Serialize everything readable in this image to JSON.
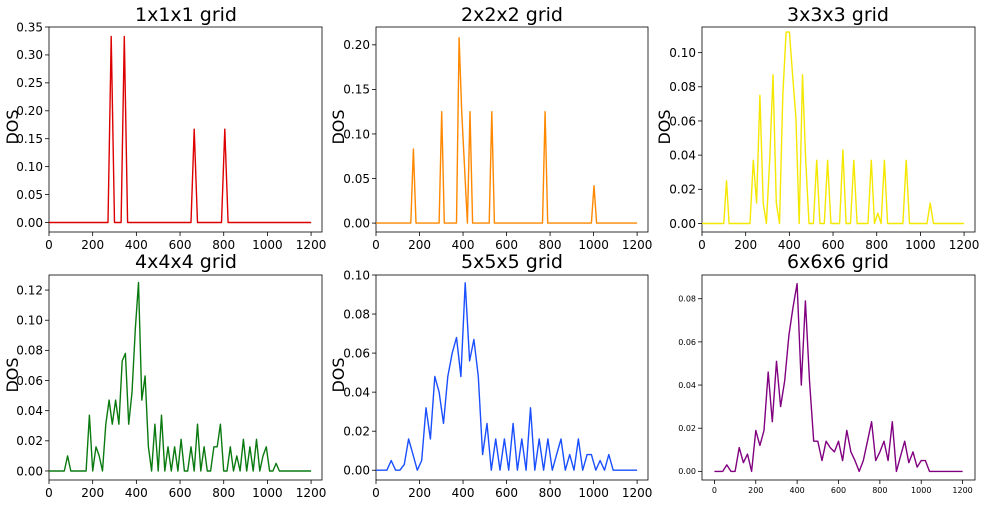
{
  "figure": {
    "colors": {
      "red": "#dd0000",
      "orange": "#ff8800",
      "yellow": "#f5e800",
      "green": "#0a7a10",
      "blue": "#1a4fff",
      "purple": "#800080"
    }
  },
  "chart_data": [
    {
      "type": "line",
      "title": "1x1x1 grid",
      "xlabel": "",
      "ylabel": "DOS",
      "xlim": [
        0,
        1250
      ],
      "ylim": [
        -0.017,
        0.35
      ],
      "xticks": [
        0,
        200,
        400,
        600,
        800,
        1000,
        1200
      ],
      "yticks": [
        0.0,
        0.05,
        0.1,
        0.15,
        0.2,
        0.25,
        0.3,
        0.35
      ],
      "ytick_labels": [
        "0.00",
        "0.05",
        "0.10",
        "0.15",
        "0.20",
        "0.25",
        "0.30",
        "0.35"
      ],
      "grid": false,
      "color": "#dd0000",
      "x": [
        0,
        270,
        285,
        300,
        330,
        345,
        360,
        650,
        665,
        680,
        790,
        805,
        820,
        1200
      ],
      "y": [
        0,
        0,
        0.333,
        0,
        0,
        0.333,
        0,
        0,
        0.167,
        0,
        0,
        0.167,
        0,
        0
      ]
    },
    {
      "type": "line",
      "title": "2x2x2 grid",
      "xlabel": "",
      "ylabel": "DOS",
      "xlim": [
        0,
        1250
      ],
      "ylim": [
        -0.01,
        0.22
      ],
      "xticks": [
        0,
        200,
        400,
        600,
        800,
        1000,
        1200
      ],
      "yticks": [
        0.0,
        0.05,
        0.1,
        0.15,
        0.2
      ],
      "ytick_labels": [
        "0.00",
        "0.05",
        "0.10",
        "0.15",
        "0.20"
      ],
      "grid": false,
      "color": "#ff8800",
      "x": [
        0,
        160,
        172,
        184,
        290,
        302,
        314,
        370,
        382,
        394,
        420,
        432,
        444,
        456,
        520,
        532,
        544,
        765,
        777,
        789,
        990,
        1002,
        1014,
        1200
      ],
      "y": [
        0,
        0,
        0.083,
        0,
        0,
        0.125,
        0,
        0,
        0.208,
        0.125,
        0,
        0.125,
        0,
        0,
        0,
        0.125,
        0,
        0,
        0.125,
        0,
        0,
        0.042,
        0,
        0
      ]
    },
    {
      "type": "line",
      "title": "3x3x3 grid",
      "xlabel": "",
      "ylabel": "DOS",
      "xlim": [
        0,
        1250
      ],
      "ylim": [
        -0.005,
        0.115
      ],
      "xticks": [
        0,
        200,
        400,
        600,
        800,
        1000,
        1200
      ],
      "yticks": [
        0.0,
        0.02,
        0.04,
        0.06,
        0.08,
        0.1
      ],
      "ytick_labels": [
        "0.00",
        "0.02",
        "0.04",
        "0.06",
        "0.08",
        "0.10"
      ],
      "grid": false,
      "color": "#f5e800",
      "x": [
        0,
        100,
        112,
        124,
        220,
        235,
        250,
        265,
        280,
        295,
        310,
        325,
        340,
        355,
        370,
        385,
        400,
        415,
        430,
        445,
        460,
        475,
        490,
        510,
        525,
        540,
        560,
        575,
        590,
        630,
        645,
        660,
        680,
        695,
        710,
        760,
        775,
        790,
        805,
        820,
        835,
        850,
        920,
        935,
        950,
        1030,
        1045,
        1060,
        1200
      ],
      "y": [
        0,
        0,
        0.025,
        0,
        0,
        0.037,
        0.012,
        0.075,
        0.012,
        0,
        0.037,
        0.087,
        0.012,
        0,
        0.075,
        0.112,
        0.112,
        0.087,
        0.062,
        0,
        0.087,
        0.037,
        0,
        0,
        0.037,
        0,
        0,
        0.037,
        0,
        0,
        0.043,
        0,
        0,
        0.037,
        0,
        0,
        0.037,
        0,
        0.006,
        0,
        0.037,
        0,
        0,
        0.037,
        0,
        0,
        0.012,
        0,
        0
      ]
    },
    {
      "type": "line",
      "title": "4x4x4 grid",
      "xlabel": "",
      "ylabel": "DOS",
      "xlim": [
        0,
        1250
      ],
      "ylim": [
        -0.006,
        0.13
      ],
      "xticks": [
        0,
        200,
        400,
        600,
        800,
        1000,
        1200
      ],
      "yticks": [
        0.0,
        0.02,
        0.04,
        0.06,
        0.08,
        0.1,
        0.12
      ],
      "ytick_labels": [
        "0.00",
        "0.02",
        "0.04",
        "0.06",
        "0.08",
        "0.10",
        "0.12"
      ],
      "grid": false,
      "color": "#0a7a10",
      "x": [
        0,
        70,
        85,
        100,
        170,
        185,
        200,
        215,
        230,
        245,
        260,
        275,
        290,
        305,
        320,
        335,
        350,
        365,
        380,
        395,
        410,
        425,
        440,
        455,
        470,
        485,
        500,
        515,
        530,
        545,
        560,
        575,
        590,
        605,
        620,
        635,
        650,
        665,
        680,
        695,
        710,
        725,
        740,
        755,
        770,
        785,
        800,
        815,
        830,
        845,
        860,
        875,
        890,
        905,
        920,
        935,
        950,
        965,
        980,
        995,
        1010,
        1025,
        1040,
        1055,
        1070,
        1085,
        1200
      ],
      "y": [
        0,
        0,
        0.01,
        0,
        0,
        0.037,
        0,
        0.016,
        0.01,
        0,
        0.031,
        0.047,
        0.031,
        0.047,
        0.031,
        0.073,
        0.078,
        0.031,
        0.052,
        0.094,
        0.125,
        0.047,
        0.063,
        0.016,
        0,
        0.031,
        0,
        0.037,
        0,
        0.016,
        0,
        0.016,
        0,
        0.021,
        0,
        0,
        0.016,
        0,
        0.031,
        0,
        0.016,
        0,
        0,
        0.016,
        0.016,
        0.031,
        0,
        0,
        0.016,
        0,
        0.01,
        0,
        0.021,
        0,
        0.016,
        0,
        0.021,
        0,
        0.01,
        0.016,
        0,
        0,
        0.005,
        0,
        0,
        0,
        0
      ]
    },
    {
      "type": "line",
      "title": "5x5x5 grid",
      "xlabel": "",
      "ylabel": "DOS",
      "xlim": [
        0,
        1250
      ],
      "ylim": [
        -0.005,
        0.1
      ],
      "xticks": [
        0,
        200,
        400,
        600,
        800,
        1000,
        1200
      ],
      "yticks": [
        0.0,
        0.02,
        0.04,
        0.06,
        0.08,
        0.1
      ],
      "ytick_labels": [
        "0.00",
        "0.02",
        "0.04",
        "0.06",
        "0.08",
        "0.10"
      ],
      "grid": false,
      "color": "#1a4fff",
      "x": [
        0,
        50,
        70,
        90,
        110,
        130,
        150,
        170,
        190,
        210,
        230,
        250,
        270,
        290,
        310,
        330,
        350,
        370,
        390,
        410,
        430,
        450,
        470,
        490,
        510,
        530,
        550,
        570,
        590,
        610,
        630,
        650,
        670,
        690,
        710,
        730,
        750,
        770,
        790,
        810,
        830,
        850,
        870,
        890,
        910,
        930,
        950,
        970,
        990,
        1010,
        1030,
        1050,
        1070,
        1090,
        1200
      ],
      "y": [
        0,
        0,
        0.005,
        0,
        0,
        0.003,
        0.016,
        0.008,
        0,
        0.005,
        0.032,
        0.016,
        0.048,
        0.04,
        0.024,
        0.048,
        0.06,
        0.068,
        0.048,
        0.096,
        0.056,
        0.067,
        0.048,
        0.008,
        0.024,
        0,
        0.016,
        0,
        0.016,
        0,
        0.024,
        0,
        0.016,
        0,
        0.032,
        0,
        0.016,
        0,
        0.016,
        0,
        0.008,
        0.016,
        0,
        0.008,
        0,
        0.016,
        0,
        0.008,
        0.008,
        0,
        0.005,
        0,
        0.008,
        0,
        0
      ]
    },
    {
      "type": "line",
      "title": "6x6x6 grid",
      "xlabel": "",
      "ylabel": "",
      "xlim": [
        -60,
        1260
      ],
      "ylim": [
        -0.004,
        0.091
      ],
      "xticks": [
        0,
        200,
        400,
        600,
        800,
        1000,
        1200
      ],
      "yticks": [
        0.0,
        0.02,
        0.04,
        0.06,
        0.08
      ],
      "ytick_labels": [
        "0.00",
        "0.02",
        "0.04",
        "0.06",
        "0.08"
      ],
      "grid": false,
      "color": "#800080",
      "x": [
        0,
        20,
        40,
        60,
        80,
        100,
        120,
        140,
        160,
        180,
        200,
        220,
        240,
        260,
        280,
        300,
        320,
        340,
        360,
        380,
        400,
        420,
        440,
        460,
        480,
        500,
        520,
        540,
        560,
        580,
        600,
        620,
        640,
        660,
        680,
        700,
        720,
        740,
        760,
        780,
        800,
        820,
        840,
        860,
        880,
        900,
        920,
        940,
        960,
        980,
        1000,
        1020,
        1040,
        1060,
        1080,
        1100,
        1120,
        1140,
        1160,
        1180,
        1200
      ],
      "y": [
        0,
        0,
        0,
        0.003,
        0,
        0,
        0.011,
        0.004,
        0.008,
        0,
        0.019,
        0.012,
        0.019,
        0.046,
        0.023,
        0.051,
        0.03,
        0.042,
        0.063,
        0.076,
        0.087,
        0.04,
        0.079,
        0.042,
        0.014,
        0.014,
        0.005,
        0.014,
        0.011,
        0.009,
        0.014,
        0.005,
        0.019,
        0.009,
        0.005,
        0,
        0.005,
        0.014,
        0.023,
        0.005,
        0.009,
        0.014,
        0.005,
        0.023,
        0,
        0.007,
        0.014,
        0.004,
        0.009,
        0.002,
        0.005,
        0.005,
        0,
        0,
        0,
        0,
        0,
        0,
        0,
        0,
        0
      ]
    }
  ]
}
